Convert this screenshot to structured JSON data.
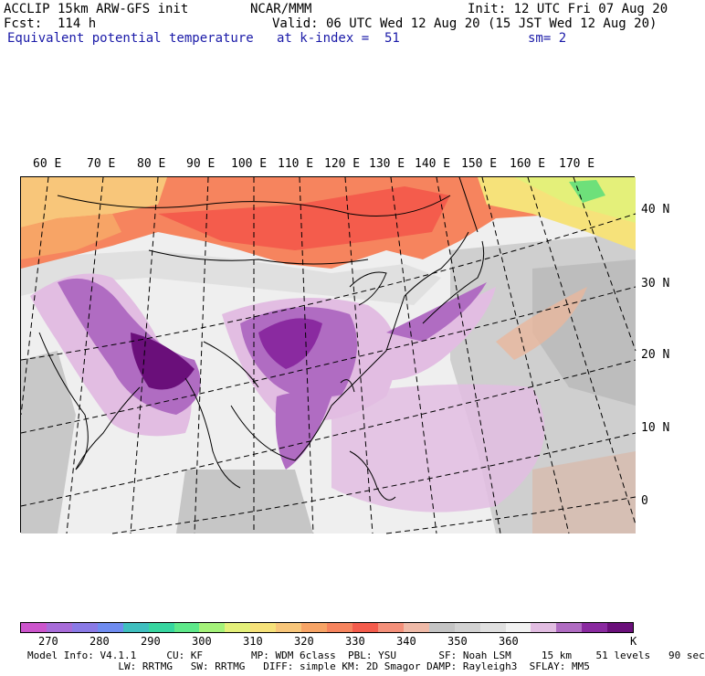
{
  "header": {
    "line1_left": "ACCLIP 15km ARW-GFS init",
    "line1_center": "NCAR/MMM",
    "line1_right": "Init: 12 UTC Fri 07 Aug 20",
    "line2_left": "Fcst:  114 h",
    "line2_right": "Valid: 06 UTC Wed 12 Aug 20 (15 JST Wed 12 Aug 20)",
    "line3_left": "Equivalent potential temperature",
    "line3_center": "at k-index =  51",
    "line3_right": "sm= 2"
  },
  "map": {
    "lon_labels": [
      "60 E",
      "70 E",
      "80 E",
      "90 E",
      "100 E",
      "110 E",
      "120 E",
      "130 E",
      "140 E",
      "150 E",
      "160 E",
      "170 E"
    ],
    "lat_labels": [
      "40 N",
      "30 N",
      "20 N",
      "10 N",
      "0"
    ]
  },
  "colorbar": {
    "colors": [
      "#cc55cc",
      "#a86cd9",
      "#8a7ae6",
      "#6f8cf0",
      "#3fbfbf",
      "#37d6a0",
      "#5ee88a",
      "#a4f27a",
      "#e4f07a",
      "#f6e27a",
      "#f8c67a",
      "#f7a466",
      "#f6845e",
      "#f45c4c",
      "#f4907a",
      "#efbaa8",
      "#c4c4c4",
      "#d2d2d2",
      "#e0e0e0",
      "#f2f2f2",
      "#e2bde2",
      "#b06cc2",
      "#8a2aa0",
      "#6a0f7a"
    ],
    "ticks": [
      "270",
      "280",
      "290",
      "300",
      "310",
      "320",
      "330",
      "340",
      "350",
      "360"
    ],
    "unit": "K"
  },
  "footer": {
    "line1": "Model Info: V4.1.1     CU: KF        MP: WDM 6class  PBL: YSU       SF: Noah LSM     15 km    51 levels   90 sec",
    "line2": "               LW: RRTMG   SW: RRTMG   DIFF: simple KM: 2D Smagor DAMP: Rayleigh3  SFLAY: MM5"
  }
}
